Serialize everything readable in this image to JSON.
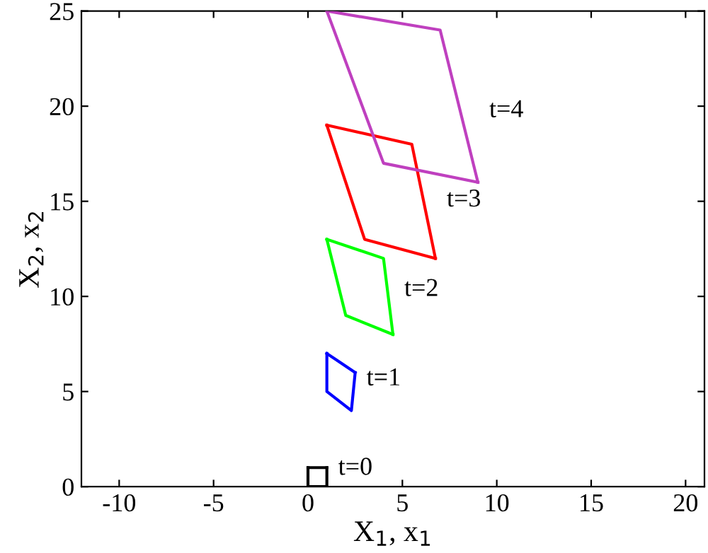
{
  "chart_data": {
    "type": "line",
    "xlabel": "X$_{1}$, x$_{1}$",
    "ylabel": "X$_{2}$, x$_{2}$",
    "xlim": [
      -12,
      21
    ],
    "ylim": [
      0,
      25
    ],
    "xticks": [
      -10,
      -5,
      0,
      5,
      10,
      15,
      20
    ],
    "yticks": [
      0,
      5,
      10,
      15,
      20,
      25
    ],
    "grid": false,
    "marker": "none",
    "line_style": "solid",
    "series": [
      {
        "name": "t=0",
        "color": "#000000",
        "x": [
          0,
          0,
          1,
          1
        ],
        "values": [
          1,
          0,
          0,
          1
        ]
      },
      {
        "color": "#000000",
        "x": [
          0,
          1
        ],
        "values": [
          1,
          1
        ]
      },
      {
        "name": "t=1",
        "color": "#0000ff",
        "x": [
          1,
          1,
          2.3,
          2.5
        ],
        "values": [
          7,
          5,
          4,
          6
        ]
      },
      {
        "color": "#0000ff",
        "x": [
          1,
          2.5
        ],
        "values": [
          7,
          6
        ]
      },
      {
        "name": "t=2",
        "color": "#00ff00",
        "x": [
          1,
          2,
          4.5
        ],
        "values": [
          13,
          9,
          8
        ]
      },
      {
        "color": "#00ff00",
        "x": [
          1,
          4,
          4.5
        ],
        "values": [
          13,
          12,
          8
        ]
      },
      {
        "name": "t=3",
        "color": "#ff0000",
        "x": [
          1,
          3,
          6.75
        ],
        "values": [
          19,
          13,
          12
        ]
      },
      {
        "color": "#ff0000",
        "x": [
          1,
          5.5,
          6.75
        ],
        "values": [
          19,
          18,
          12
        ]
      },
      {
        "name": "t=4",
        "color": "#bf40bf",
        "x": [
          1,
          4,
          9
        ],
        "values": [
          25,
          17,
          16
        ]
      },
      {
        "color": "#bf40bf",
        "x": [
          1,
          7,
          9
        ],
        "values": [
          25,
          24,
          16
        ]
      }
    ]
  }
}
